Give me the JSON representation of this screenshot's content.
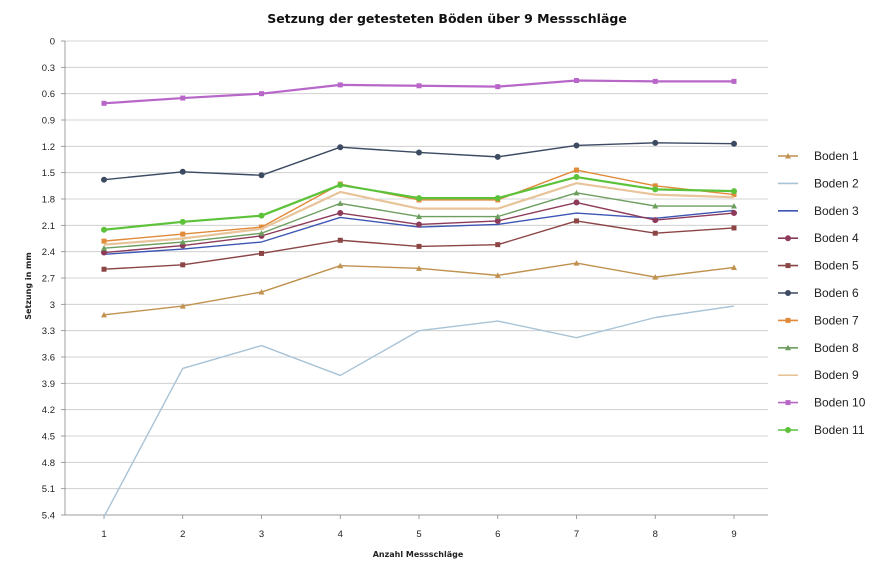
{
  "chart_data": {
    "type": "line",
    "title": "Setzung der getesteten Böden über 9 Messschläge",
    "xlabel": "Anzahl Messschläge",
    "ylabel": "Setzung in mm",
    "x": [
      1,
      2,
      3,
      4,
      5,
      6,
      7,
      8,
      9
    ],
    "ylim": [
      0,
      5.4
    ],
    "y_inverted": true,
    "y_ticks": [
      "0",
      "0.3",
      "0.6",
      "0.9",
      "1.2",
      "1.5",
      "1.8",
      "2.1",
      "2.4",
      "2.7",
      "3",
      "3.3",
      "3.6",
      "3.9",
      "4.2",
      "4.5",
      "4.8",
      "5.1",
      "5.4"
    ],
    "grid": "horizontal",
    "legend_position": "right",
    "series": [
      {
        "name": "Boden 1",
        "color": "#c0914f",
        "marker": "triangle",
        "values": [
          3.12,
          3.02,
          2.86,
          2.56,
          2.59,
          2.67,
          2.53,
          2.69,
          2.58
        ]
      },
      {
        "name": "Boden 2",
        "color": "#a9c3d6",
        "marker": "none",
        "values": [
          5.42,
          3.73,
          3.47,
          3.81,
          3.3,
          3.19,
          3.38,
          3.15,
          3.02
        ]
      },
      {
        "name": "Boden 3",
        "color": "#3d56b4",
        "marker": "none",
        "values": [
          2.43,
          2.37,
          2.29,
          2.01,
          2.12,
          2.09,
          1.96,
          2.02,
          1.93
        ]
      },
      {
        "name": "Boden 4",
        "color": "#8e3a5a",
        "marker": "circle",
        "values": [
          2.41,
          2.33,
          2.22,
          1.96,
          2.09,
          2.05,
          1.84,
          2.04,
          1.96
        ]
      },
      {
        "name": "Boden 5",
        "color": "#8c4545",
        "marker": "square",
        "values": [
          2.6,
          2.55,
          2.42,
          2.27,
          2.34,
          2.32,
          2.05,
          2.19,
          2.13
        ]
      },
      {
        "name": "Boden 6",
        "color": "#3c4a62",
        "marker": "circle",
        "values": [
          1.58,
          1.49,
          1.53,
          1.21,
          1.27,
          1.32,
          1.19,
          1.16,
          1.17
        ]
      },
      {
        "name": "Boden 7",
        "color": "#e08a3a",
        "marker": "square",
        "values": [
          2.28,
          2.2,
          2.12,
          1.63,
          1.81,
          1.81,
          1.47,
          1.65,
          1.75
        ]
      },
      {
        "name": "Boden 8",
        "color": "#6c9e5e",
        "marker": "triangle",
        "values": [
          2.36,
          2.29,
          2.19,
          1.85,
          2.0,
          2.0,
          1.73,
          1.88,
          1.88
        ]
      },
      {
        "name": "Boden 9",
        "color": "#e8c49a",
        "marker": "none",
        "values": [
          2.32,
          2.25,
          2.14,
          1.72,
          1.91,
          1.91,
          1.62,
          1.75,
          1.78
        ]
      },
      {
        "name": "Boden 10",
        "color": "#b866c8",
        "marker": "square",
        "values": [
          0.71,
          0.65,
          0.6,
          0.5,
          0.51,
          0.52,
          0.45,
          0.46,
          0.46
        ]
      },
      {
        "name": "Boden 11",
        "color": "#5cc23a",
        "marker": "circle",
        "values": [
          2.15,
          2.06,
          1.99,
          1.64,
          1.79,
          1.79,
          1.55,
          1.69,
          1.71
        ]
      }
    ]
  }
}
